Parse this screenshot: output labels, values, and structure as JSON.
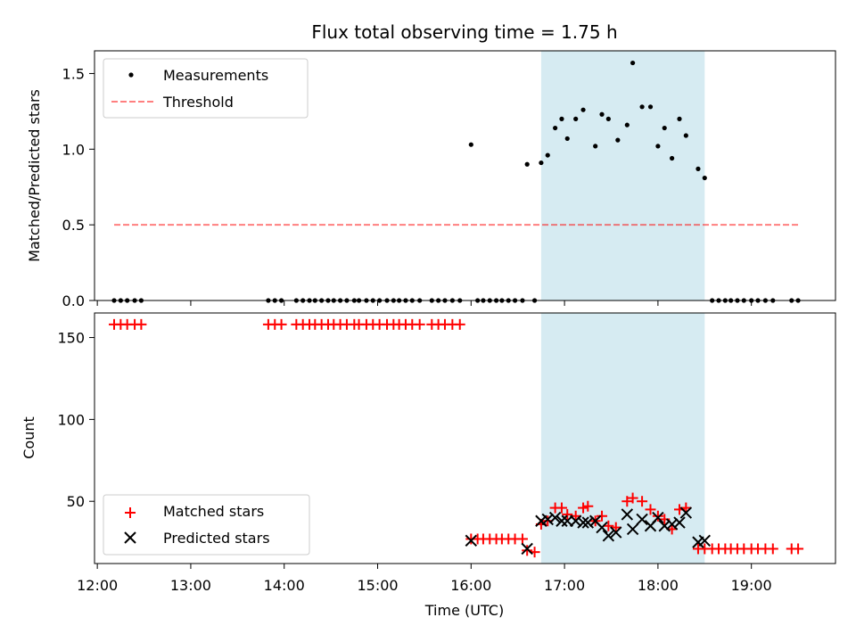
{
  "chart_data": {
    "type": "scatter",
    "title": "Flux total observing time = 1.75 h",
    "xlabel": "Time (UTC)",
    "x_ticks": [
      "12:00",
      "13:00",
      "14:00",
      "15:00",
      "16:00",
      "17:00",
      "18:00",
      "19:00"
    ],
    "x_range_hours": [
      11.97,
      19.9
    ],
    "shaded_interval_hours": [
      16.75,
      18.5
    ],
    "shade_color": "#add8e6",
    "top_panel": {
      "ylabel": "Matched/Predicted stars",
      "ylim": [
        0,
        1.65
      ],
      "y_ticks": [
        "0.0",
        "0.5",
        "1.0",
        "1.5"
      ],
      "legend": [
        "Measurements",
        "Threshold"
      ],
      "legend_position": "upper-left",
      "measurements_color": "#000000",
      "threshold_color": "#ff0000",
      "threshold": {
        "value": 0.5,
        "x": [
          12.18,
          19.52
        ]
      },
      "measurements": [
        [
          12.18,
          0
        ],
        [
          12.25,
          0
        ],
        [
          12.32,
          0
        ],
        [
          12.4,
          0
        ],
        [
          12.47,
          0
        ],
        [
          13.83,
          0
        ],
        [
          13.9,
          0
        ],
        [
          13.97,
          0
        ],
        [
          14.13,
          0
        ],
        [
          14.2,
          0
        ],
        [
          14.27,
          0
        ],
        [
          14.33,
          0
        ],
        [
          14.4,
          0
        ],
        [
          14.47,
          0
        ],
        [
          14.53,
          0
        ],
        [
          14.6,
          0
        ],
        [
          14.67,
          0
        ],
        [
          14.75,
          0
        ],
        [
          14.8,
          0
        ],
        [
          14.88,
          0
        ],
        [
          14.95,
          0
        ],
        [
          15.02,
          0
        ],
        [
          15.1,
          0
        ],
        [
          15.17,
          0
        ],
        [
          15.23,
          0
        ],
        [
          15.3,
          0
        ],
        [
          15.37,
          0
        ],
        [
          15.45,
          0
        ],
        [
          15.58,
          0
        ],
        [
          15.65,
          0
        ],
        [
          15.72,
          0
        ],
        [
          15.8,
          0
        ],
        [
          15.88,
          0
        ],
        [
          16.0,
          1.03
        ],
        [
          16.07,
          0
        ],
        [
          16.13,
          0
        ],
        [
          16.2,
          0
        ],
        [
          16.27,
          0
        ],
        [
          16.33,
          0
        ],
        [
          16.4,
          0
        ],
        [
          16.47,
          0
        ],
        [
          16.55,
          0
        ],
        [
          16.6,
          0.9
        ],
        [
          16.68,
          0
        ],
        [
          16.75,
          0.91
        ],
        [
          16.82,
          0.96
        ],
        [
          16.9,
          1.14
        ],
        [
          16.97,
          1.2
        ],
        [
          17.03,
          1.07
        ],
        [
          17.12,
          1.2
        ],
        [
          17.2,
          1.26
        ],
        [
          17.33,
          1.02
        ],
        [
          17.4,
          1.23
        ],
        [
          17.47,
          1.2
        ],
        [
          17.57,
          1.06
        ],
        [
          17.67,
          1.16
        ],
        [
          17.73,
          1.57
        ],
        [
          17.83,
          1.28
        ],
        [
          17.92,
          1.28
        ],
        [
          18.0,
          1.02
        ],
        [
          18.07,
          1.14
        ],
        [
          18.15,
          0.94
        ],
        [
          18.23,
          1.2
        ],
        [
          18.3,
          1.09
        ],
        [
          18.43,
          0.87
        ],
        [
          18.5,
          0.81
        ],
        [
          18.58,
          0
        ],
        [
          18.65,
          0
        ],
        [
          18.72,
          0
        ],
        [
          18.78,
          0
        ],
        [
          18.85,
          0
        ],
        [
          18.92,
          0
        ],
        [
          19.0,
          0
        ],
        [
          19.07,
          0
        ],
        [
          19.15,
          0
        ],
        [
          19.23,
          0
        ],
        [
          19.43,
          0
        ],
        [
          19.5,
          0
        ]
      ]
    },
    "bottom_panel": {
      "ylabel": "Count",
      "ylim": [
        12,
        165
      ],
      "y_ticks": [
        "50",
        "100",
        "150"
      ],
      "legend": [
        "Matched stars",
        "Predicted stars"
      ],
      "legend_position": "lower-left",
      "matched_color": "#ff0000",
      "predicted_color": "#000000",
      "matched_stars": [
        [
          12.18,
          158
        ],
        [
          12.25,
          158
        ],
        [
          12.32,
          158
        ],
        [
          12.4,
          158
        ],
        [
          12.47,
          158
        ],
        [
          13.83,
          158
        ],
        [
          13.9,
          158
        ],
        [
          13.97,
          158
        ],
        [
          14.13,
          158
        ],
        [
          14.2,
          158
        ],
        [
          14.27,
          158
        ],
        [
          14.33,
          158
        ],
        [
          14.4,
          158
        ],
        [
          14.47,
          158
        ],
        [
          14.53,
          158
        ],
        [
          14.6,
          158
        ],
        [
          14.67,
          158
        ],
        [
          14.75,
          158
        ],
        [
          14.8,
          158
        ],
        [
          14.88,
          158
        ],
        [
          14.95,
          158
        ],
        [
          15.02,
          158
        ],
        [
          15.1,
          158
        ],
        [
          15.17,
          158
        ],
        [
          15.23,
          158
        ],
        [
          15.3,
          158
        ],
        [
          15.37,
          158
        ],
        [
          15.45,
          158
        ],
        [
          15.58,
          158
        ],
        [
          15.65,
          158
        ],
        [
          15.72,
          158
        ],
        [
          15.8,
          158
        ],
        [
          15.88,
          158
        ],
        [
          16.0,
          27
        ],
        [
          16.07,
          27
        ],
        [
          16.13,
          27
        ],
        [
          16.2,
          27
        ],
        [
          16.27,
          27
        ],
        [
          16.33,
          27
        ],
        [
          16.4,
          27
        ],
        [
          16.47,
          27
        ],
        [
          16.55,
          27
        ],
        [
          16.6,
          20
        ],
        [
          16.68,
          19
        ],
        [
          16.75,
          36
        ],
        [
          16.82,
          38
        ],
        [
          16.9,
          46
        ],
        [
          16.97,
          46
        ],
        [
          17.03,
          42
        ],
        [
          17.12,
          41
        ],
        [
          17.2,
          46
        ],
        [
          17.25,
          47
        ],
        [
          17.33,
          38
        ],
        [
          17.4,
          41
        ],
        [
          17.47,
          35
        ],
        [
          17.55,
          34
        ],
        [
          17.67,
          50
        ],
        [
          17.73,
          52
        ],
        [
          17.83,
          50
        ],
        [
          17.92,
          45
        ],
        [
          18.0,
          41
        ],
        [
          18.07,
          39
        ],
        [
          18.15,
          33
        ],
        [
          18.23,
          45
        ],
        [
          18.3,
          46
        ],
        [
          18.43,
          21
        ],
        [
          18.5,
          21
        ],
        [
          18.58,
          21
        ],
        [
          18.65,
          21
        ],
        [
          18.72,
          21
        ],
        [
          18.78,
          21
        ],
        [
          18.85,
          21
        ],
        [
          18.92,
          21
        ],
        [
          19.0,
          21
        ],
        [
          19.07,
          21
        ],
        [
          19.15,
          21
        ],
        [
          19.23,
          21
        ],
        [
          19.43,
          21
        ],
        [
          19.5,
          21
        ]
      ],
      "predicted_stars": [
        [
          16.0,
          26
        ],
        [
          16.6,
          21
        ],
        [
          16.75,
          38
        ],
        [
          16.82,
          39
        ],
        [
          16.9,
          40
        ],
        [
          16.97,
          38
        ],
        [
          17.03,
          38
        ],
        [
          17.12,
          38
        ],
        [
          17.2,
          37
        ],
        [
          17.25,
          37
        ],
        [
          17.33,
          38
        ],
        [
          17.4,
          34
        ],
        [
          17.47,
          29
        ],
        [
          17.55,
          31
        ],
        [
          17.67,
          42
        ],
        [
          17.73,
          33
        ],
        [
          17.83,
          39
        ],
        [
          17.92,
          35
        ],
        [
          18.0,
          40
        ],
        [
          18.07,
          35
        ],
        [
          18.15,
          36
        ],
        [
          18.23,
          37
        ],
        [
          18.3,
          43
        ],
        [
          18.43,
          25
        ],
        [
          18.5,
          26
        ]
      ]
    }
  }
}
